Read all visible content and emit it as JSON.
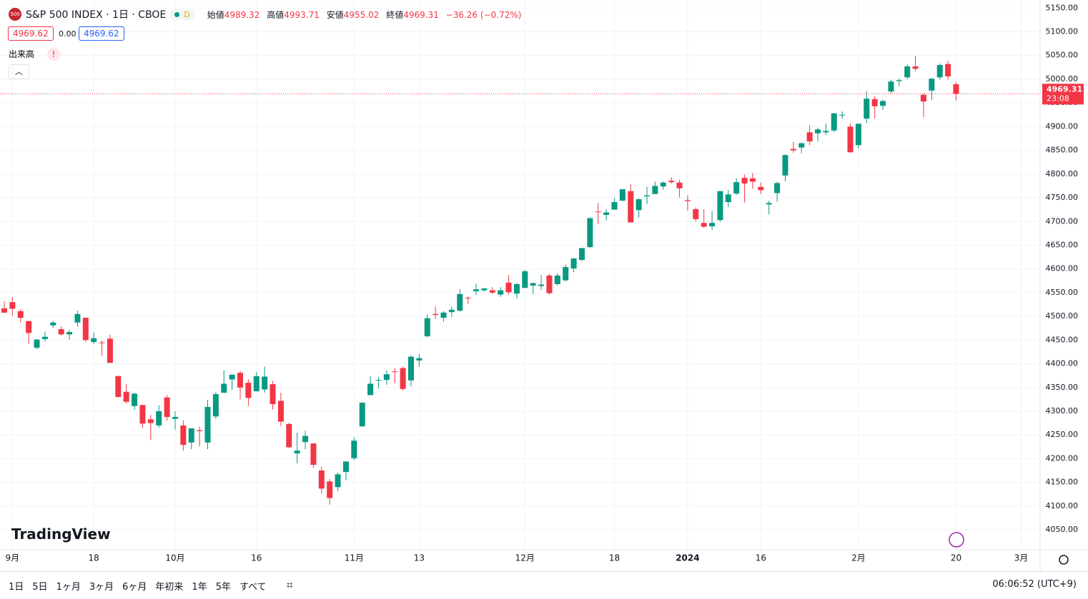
{
  "header": {
    "badge": "500",
    "symbol": "S&P 500 INDEX · 1日 · CBOE",
    "interval_badge": "D",
    "open_label": "始値",
    "high_label": "高値",
    "low_label": "安値",
    "close_label": "終値",
    "change": "−36.26 (−0.72%)",
    "bid": "4969.62",
    "spread": "0.00",
    "ask": "4969.62",
    "volume_label": "出来高",
    "volume_alert": "!",
    "countdown": "23:08",
    "logo": "TradingView"
  },
  "toolbar": {
    "ranges": [
      "1日",
      "5日",
      "1ヶ月",
      "3ヶ月",
      "6ヶ月",
      "年初来",
      "1年",
      "5年",
      "すべて"
    ],
    "clock": "06:06:52 (UTC+9)"
  },
  "chart_data": {
    "type": "candlestick",
    "up_color": "#089981",
    "down_color": "#f23645",
    "categories": [
      null,
      "9月",
      null,
      null,
      null,
      null,
      null,
      null,
      null,
      null,
      null,
      "18",
      null,
      null,
      null,
      null,
      null,
      null,
      null,
      null,
      null,
      "10月",
      null,
      null,
      null,
      null,
      null,
      null,
      null,
      null,
      null,
      "16",
      null,
      null,
      null,
      null,
      null,
      null,
      null,
      null,
      null,
      null,
      null,
      "11月",
      null,
      null,
      null,
      null,
      null,
      null,
      null,
      "13",
      null,
      null,
      null,
      null,
      null,
      null,
      null,
      null,
      null,
      null,
      null,
      null,
      "12月",
      null,
      null,
      null,
      null,
      null,
      null,
      null,
      null,
      null,
      null,
      "18",
      null,
      null,
      null,
      null,
      null,
      null,
      null,
      null,
      "2024",
      null,
      null,
      null,
      null,
      null,
      null,
      null,
      null,
      "16",
      null,
      null,
      null,
      null,
      null,
      null,
      null,
      null,
      null,
      null,
      null,
      "2月",
      null,
      null,
      null,
      null,
      null,
      null,
      null,
      null,
      null,
      null,
      null,
      "20",
      null,
      null,
      null,
      null,
      null,
      null,
      null,
      "3月"
    ],
    "open": [
      4517,
      4530,
      4511,
      4490,
      4434,
      4452,
      4481,
      4473,
      4462,
      4487,
      4497,
      4446,
      4445,
      4453,
      4374,
      4341,
      4311,
      4313,
      4283,
      4270,
      4329,
      4284,
      4270,
      4234,
      4260,
      4234,
      4289,
      4339,
      4367,
      4381,
      4360,
      4342,
      4346,
      4357,
      4322,
      4273,
      4211,
      4235,
      4232,
      4175,
      4152,
      4140,
      4172,
      4201,
      4268,
      4334,
      4365,
      4366,
      4384,
      4391,
      4365,
      4407,
      4458,
      4505,
      4497,
      4509,
      4512,
      4539,
      4553,
      4555,
      4555,
      4546,
      4571,
      4548,
      4560,
      4565,
      4564,
      4586,
      4568,
      4576,
      4601,
      4619,
      4646,
      4721,
      4714,
      4725,
      4744,
      4764,
      4724,
      4753,
      4758,
      4774,
      4786,
      4782,
      4745,
      4726,
      4697,
      4690,
      4703,
      4741,
      4759,
      4792,
      4791,
      4773,
      4736,
      4760,
      4797,
      4853,
      4856,
      4888,
      4886,
      4888,
      4892,
      4925,
      4900,
      4861,
      4917,
      4958,
      4944,
      4974,
      4996,
      5004,
      5027,
      4967,
      4976,
      5004,
      5032,
      4989.32,
      null,
      null,
      null,
      null,
      null,
      null,
      null,
      null
    ],
    "high": [
      4532,
      4541,
      4515,
      4491,
      4452,
      4468,
      4490,
      4479,
      4472,
      4512,
      4498,
      4466,
      4449,
      4461,
      4376,
      4357,
      4339,
      4314,
      4292,
      4313,
      4334,
      4300,
      4281,
      4264,
      4268,
      4324,
      4341,
      4386,
      4378,
      4385,
      4367,
      4383,
      4394,
      4364,
      4339,
      4276,
      4255,
      4259,
      4233,
      4183,
      4157,
      4171,
      4194,
      4245,
      4319,
      4374,
      4372,
      4386,
      4391,
      4394,
      4418,
      4421,
      4504,
      4521,
      4511,
      4521,
      4557,
      4542,
      4569,
      4560,
      4562,
      4562,
      4587,
      4570,
      4598,
      4572,
      4587,
      4590,
      4591,
      4609,
      4623,
      4644,
      4709,
      4739,
      4726,
      4749,
      4768,
      4779,
      4749,
      4773,
      4784,
      4785,
      4793,
      4788,
      4755,
      4730,
      4726,
      4722,
      4764,
      4766,
      4791,
      4799,
      4802,
      4782,
      4744,
      4784,
      4842,
      4868,
      4866,
      4903,
      4898,
      4906,
      4929,
      4932,
      4907,
      4907,
      4975,
      4964,
      4957,
      4999,
      5001,
      5031,
      5049,
      4970,
      5003,
      5033,
      5039,
      4993.71,
      null,
      null,
      null,
      null,
      null,
      null,
      null,
      null
    ],
    "low": [
      4507,
      4501,
      4487,
      4442,
      4431,
      4447,
      4475,
      4460,
      4451,
      4478,
      4447,
      4442,
      4417,
      4402,
      4329,
      4316,
      4303,
      4265,
      4239,
      4265,
      4280,
      4261,
      4217,
      4220,
      4226,
      4220,
      4284,
      4339,
      4345,
      4325,
      4311,
      4342,
      4339,
      4304,
      4269,
      4223,
      4190,
      4220,
      4181,
      4127,
      4103,
      4132,
      4155,
      4197,
      4268,
      4334,
      4348,
      4356,
      4359,
      4344,
      4353,
      4394,
      4456,
      4495,
      4489,
      4499,
      4510,
      4526,
      4545,
      4552,
      4547,
      4541,
      4546,
      4538,
      4560,
      4547,
      4556,
      4546,
      4565,
      4574,
      4593,
      4617,
      4644,
      4694,
      4702,
      4725,
      4743,
      4699,
      4708,
      4737,
      4758,
      4767,
      4780,
      4751,
      4723,
      4700,
      4687,
      4682,
      4700,
      4731,
      4756,
      4740,
      4769,
      4758,
      4715,
      4742,
      4785,
      4845,
      4844,
      4861,
      4869,
      4882,
      4888,
      4917,
      4845,
      4853,
      4907,
      4917,
      4935,
      4970,
      4985,
      5000,
      5017,
      4920,
      4956,
      4999,
      4999,
      4955.02,
      null,
      null,
      null,
      null,
      null,
      null,
      null,
      null
    ],
    "close": [
      4508,
      4516,
      4497,
      4465,
      4451,
      4457,
      4487,
      4462,
      4467,
      4505,
      4450,
      4454,
      4444,
      4402,
      4330,
      4320,
      4337,
      4274,
      4275,
      4300,
      4288,
      4288,
      4229,
      4264,
      4258,
      4309,
      4336,
      4358,
      4377,
      4350,
      4328,
      4374,
      4373,
      4315,
      4278,
      4224,
      4217,
      4248,
      4187,
      4137,
      4117,
      4167,
      4194,
      4238,
      4318,
      4358,
      4366,
      4378,
      4383,
      4347,
      4415,
      4412,
      4496,
      4503,
      4508,
      4514,
      4547,
      4538,
      4557,
      4559,
      4550,
      4555,
      4551,
      4568,
      4595,
      4570,
      4567,
      4549,
      4586,
      4604,
      4622,
      4644,
      4707,
      4720,
      4719,
      4741,
      4768,
      4698,
      4747,
      4755,
      4775,
      4782,
      4783,
      4770,
      4743,
      4705,
      4689,
      4697,
      4764,
      4757,
      4783,
      4780,
      4784,
      4766,
      4739,
      4781,
      4840,
      4850,
      4865,
      4869,
      4894,
      4891,
      4928,
      4925,
      4846,
      4906,
      4959,
      4943,
      4954,
      4995,
      4998,
      5027,
      5022,
      4953,
      5001,
      5030,
      5006,
      4969.31,
      null,
      null,
      null,
      null,
      null,
      null,
      null,
      null
    ],
    "ylim": [
      4008,
      5167
    ],
    "yticks": [
      {
        "value": 4050,
        "label": "4050.00"
      },
      {
        "value": 4100,
        "label": "4100.00"
      },
      {
        "value": 4150,
        "label": "4150.00"
      },
      {
        "value": 4200,
        "label": "4200.00"
      },
      {
        "value": 4250,
        "label": "4250.00"
      },
      {
        "value": 4300,
        "label": "4300.00"
      },
      {
        "value": 4350,
        "label": "4350.00"
      },
      {
        "value": 4400,
        "label": "4400.00"
      },
      {
        "value": 4450,
        "label": "4450.00"
      },
      {
        "value": 4500,
        "label": "4500.00"
      },
      {
        "value": 4550,
        "label": "4550.00"
      },
      {
        "value": 4600,
        "label": "4600.00"
      },
      {
        "value": 4650,
        "label": "4650.00"
      },
      {
        "value": 4700,
        "label": "4700.00"
      },
      {
        "value": 4750,
        "label": "4750.00"
      },
      {
        "value": 4800,
        "label": "4800.00"
      },
      {
        "value": 4850,
        "label": "4850.00"
      },
      {
        "value": 4900,
        "label": "4900.00"
      },
      {
        "value": 4950,
        "label": "4950.00"
      },
      {
        "value": 5000,
        "label": "5000.00"
      },
      {
        "value": 5050,
        "label": "5050.00"
      },
      {
        "value": 5100,
        "label": "5100.00"
      },
      {
        "value": 5150,
        "label": "5150.00"
      }
    ],
    "grid": true
  }
}
